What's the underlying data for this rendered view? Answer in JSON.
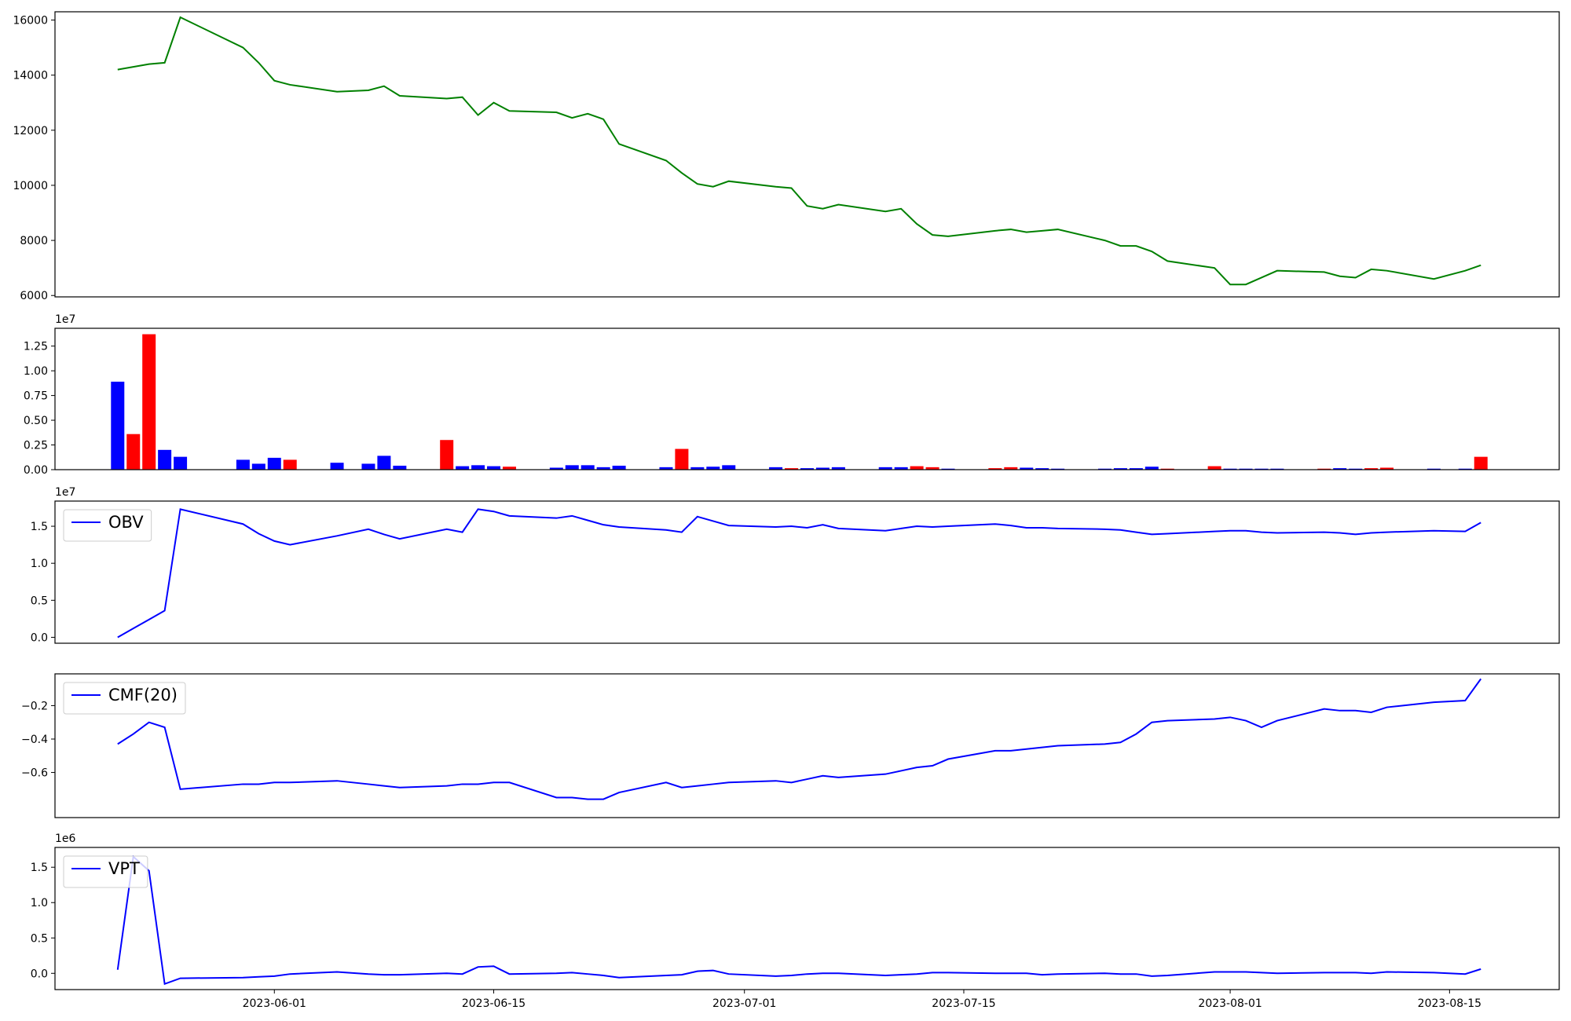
{
  "chart_data": [
    {
      "type": "line",
      "x": [
        "2023-05-22",
        "2023-05-23",
        "2023-05-24",
        "2023-05-25",
        "2023-05-26",
        "2023-05-30",
        "2023-05-31",
        "2023-06-01",
        "2023-06-02",
        "2023-06-05",
        "2023-06-07",
        "2023-06-08",
        "2023-06-09",
        "2023-06-12",
        "2023-06-13",
        "2023-06-14",
        "2023-06-15",
        "2023-06-16",
        "2023-06-19",
        "2023-06-20",
        "2023-06-21",
        "2023-06-22",
        "2023-06-23",
        "2023-06-26",
        "2023-06-27",
        "2023-06-28",
        "2023-06-29",
        "2023-06-30",
        "2023-07-03",
        "2023-07-04",
        "2023-07-05",
        "2023-07-06",
        "2023-07-07",
        "2023-07-10",
        "2023-07-11",
        "2023-07-12",
        "2023-07-13",
        "2023-07-14",
        "2023-07-17",
        "2023-07-18",
        "2023-07-19",
        "2023-07-20",
        "2023-07-21",
        "2023-07-24",
        "2023-07-25",
        "2023-07-26",
        "2023-07-27",
        "2023-07-28",
        "2023-07-31",
        "2023-08-01",
        "2023-08-02",
        "2023-08-03",
        "2023-08-04",
        "2023-08-07",
        "2023-08-08",
        "2023-08-09",
        "2023-08-10",
        "2023-08-11",
        "2023-08-14",
        "2023-08-16",
        "2023-08-17"
      ],
      "series": [
        {
          "color": "green",
          "values": [
            14200,
            14300,
            14400,
            14450,
            16100,
            15000,
            14450,
            13800,
            13650,
            13400,
            13450,
            13600,
            13250,
            13150,
            13200,
            12550,
            13000,
            12700,
            12650,
            12450,
            12600,
            12400,
            11500,
            10900,
            10450,
            10050,
            9950,
            10150,
            9950,
            9900,
            9250,
            9150,
            9300,
            9050,
            9150,
            8600,
            8200,
            8150,
            8350,
            8400,
            8300,
            8350,
            8400,
            8000,
            7800,
            7800,
            7600,
            7250,
            7000,
            6400,
            6400,
            6650,
            6900,
            6850,
            6700,
            6650,
            6950,
            6900,
            6600,
            6900,
            7100
          ]
        }
      ],
      "xlim": [
        "2023-05-18",
        "2023-08-22"
      ],
      "ylim": [
        5950,
        16300
      ],
      "yticks": [
        6000,
        8000,
        10000,
        12000,
        14000,
        16000
      ]
    },
    {
      "type": "bar",
      "x": [
        "2023-05-22",
        "2023-05-23",
        "2023-05-24",
        "2023-05-25",
        "2023-05-26",
        "2023-05-30",
        "2023-05-31",
        "2023-06-01",
        "2023-06-02",
        "2023-06-05",
        "2023-06-07",
        "2023-06-08",
        "2023-06-09",
        "2023-06-12",
        "2023-06-13",
        "2023-06-14",
        "2023-06-15",
        "2023-06-16",
        "2023-06-19",
        "2023-06-20",
        "2023-06-21",
        "2023-06-22",
        "2023-06-23",
        "2023-06-26",
        "2023-06-27",
        "2023-06-28",
        "2023-06-29",
        "2023-06-30",
        "2023-07-03",
        "2023-07-04",
        "2023-07-05",
        "2023-07-06",
        "2023-07-07",
        "2023-07-10",
        "2023-07-11",
        "2023-07-12",
        "2023-07-13",
        "2023-07-14",
        "2023-07-17",
        "2023-07-18",
        "2023-07-19",
        "2023-07-20",
        "2023-07-21",
        "2023-07-24",
        "2023-07-25",
        "2023-07-26",
        "2023-07-27",
        "2023-07-28",
        "2023-07-31",
        "2023-08-01",
        "2023-08-02",
        "2023-08-03",
        "2023-08-04",
        "2023-08-07",
        "2023-08-08",
        "2023-08-09",
        "2023-08-10",
        "2023-08-11",
        "2023-08-14",
        "2023-08-16",
        "2023-08-17"
      ],
      "values": [
        8900000,
        3600000,
        13700000,
        2000000,
        1300000,
        1000000,
        600000,
        1200000,
        1000000,
        700000,
        600000,
        1400000,
        400000,
        3000000,
        350000,
        450000,
        350000,
        300000,
        200000,
        450000,
        450000,
        250000,
        400000,
        250000,
        2100000,
        250000,
        300000,
        450000,
        250000,
        150000,
        150000,
        200000,
        250000,
        250000,
        250000,
        350000,
        250000,
        100000,
        150000,
        250000,
        200000,
        150000,
        100000,
        100000,
        150000,
        150000,
        300000,
        100000,
        350000,
        100000,
        100000,
        100000,
        100000,
        100000,
        150000,
        100000,
        150000,
        200000,
        100000,
        100000,
        1300000
      ],
      "colors": [
        "blue",
        "red",
        "red",
        "blue",
        "blue",
        "blue",
        "blue",
        "blue",
        "red",
        "blue",
        "blue",
        "blue",
        "blue",
        "red",
        "blue",
        "blue",
        "blue",
        "red",
        "blue",
        "blue",
        "blue",
        "blue",
        "blue",
        "blue",
        "red",
        "blue",
        "blue",
        "blue",
        "blue",
        "red",
        "blue",
        "blue",
        "blue",
        "blue",
        "blue",
        "red",
        "red",
        "blue",
        "red",
        "red",
        "blue",
        "blue",
        "blue",
        "blue",
        "blue",
        "blue",
        "blue",
        "red",
        "red",
        "blue",
        "blue",
        "blue",
        "blue",
        "red",
        "blue",
        "blue",
        "red",
        "red",
        "blue",
        "blue",
        "red"
      ],
      "xlim": [
        "2023-05-18",
        "2023-08-22"
      ],
      "ylim": [
        0,
        14300000
      ],
      "y_offset_label": "1e7",
      "yticks": [
        {
          "value": 0,
          "label": "0.00"
        },
        {
          "value": 2500000,
          "label": "0.25"
        },
        {
          "value": 5000000,
          "label": "0.50"
        },
        {
          "value": 7500000,
          "label": "0.75"
        },
        {
          "value": 10000000,
          "label": "1.00"
        },
        {
          "value": 12500000,
          "label": "1.25"
        }
      ]
    },
    {
      "type": "line",
      "x": [
        "2023-05-22",
        "2023-05-23",
        "2023-05-24",
        "2023-05-25",
        "2023-05-26",
        "2023-05-30",
        "2023-05-31",
        "2023-06-01",
        "2023-06-02",
        "2023-06-05",
        "2023-06-07",
        "2023-06-08",
        "2023-06-09",
        "2023-06-12",
        "2023-06-13",
        "2023-06-14",
        "2023-06-15",
        "2023-06-16",
        "2023-06-19",
        "2023-06-20",
        "2023-06-21",
        "2023-06-22",
        "2023-06-23",
        "2023-06-26",
        "2023-06-27",
        "2023-06-28",
        "2023-06-29",
        "2023-06-30",
        "2023-07-03",
        "2023-07-04",
        "2023-07-05",
        "2023-07-06",
        "2023-07-07",
        "2023-07-10",
        "2023-07-11",
        "2023-07-12",
        "2023-07-13",
        "2023-07-14",
        "2023-07-17",
        "2023-07-18",
        "2023-07-19",
        "2023-07-20",
        "2023-07-21",
        "2023-07-24",
        "2023-07-25",
        "2023-07-26",
        "2023-07-27",
        "2023-07-28",
        "2023-07-31",
        "2023-08-01",
        "2023-08-02",
        "2023-08-03",
        "2023-08-04",
        "2023-08-07",
        "2023-08-08",
        "2023-08-09",
        "2023-08-10",
        "2023-08-11",
        "2023-08-14",
        "2023-08-16",
        "2023-08-17"
      ],
      "series": [
        {
          "name": "OBV",
          "color": "blue",
          "values": [
            0,
            1200000,
            2400000,
            3600000,
            17300000,
            15300000,
            14000000,
            13000000,
            12500000,
            13700000,
            14600000,
            13900000,
            13300000,
            14600000,
            14200000,
            17300000,
            17000000,
            16400000,
            16100000,
            16400000,
            15800000,
            15200000,
            14900000,
            14500000,
            14200000,
            16300000,
            15700000,
            15100000,
            14900000,
            15000000,
            14800000,
            15200000,
            14700000,
            14400000,
            14700000,
            15000000,
            14900000,
            15000000,
            15300000,
            15100000,
            14800000,
            14800000,
            14700000,
            14600000,
            14500000,
            14200000,
            13900000,
            14000000,
            14300000,
            14400000,
            14400000,
            14200000,
            14100000,
            14200000,
            14100000,
            13900000,
            14100000,
            14200000,
            14400000,
            14300000,
            15500000
          ]
        }
      ],
      "xlim": [
        "2023-05-18",
        "2023-08-22"
      ],
      "ylim": [
        -800000,
        18400000
      ],
      "y_offset_label": "1e7",
      "yticks": [
        {
          "value": 0,
          "label": "0.0"
        },
        {
          "value": 5000000,
          "label": "0.5"
        },
        {
          "value": 10000000,
          "label": "1.0"
        },
        {
          "value": 15000000,
          "label": "1.5"
        }
      ],
      "legend": "upper left"
    },
    {
      "type": "line",
      "x": [
        "2023-05-22",
        "2023-05-23",
        "2023-05-24",
        "2023-05-25",
        "2023-05-26",
        "2023-05-30",
        "2023-05-31",
        "2023-06-01",
        "2023-06-02",
        "2023-06-05",
        "2023-06-07",
        "2023-06-08",
        "2023-06-09",
        "2023-06-12",
        "2023-06-13",
        "2023-06-14",
        "2023-06-15",
        "2023-06-16",
        "2023-06-19",
        "2023-06-20",
        "2023-06-21",
        "2023-06-22",
        "2023-06-23",
        "2023-06-26",
        "2023-06-27",
        "2023-06-28",
        "2023-06-29",
        "2023-06-30",
        "2023-07-03",
        "2023-07-04",
        "2023-07-05",
        "2023-07-06",
        "2023-07-07",
        "2023-07-10",
        "2023-07-11",
        "2023-07-12",
        "2023-07-13",
        "2023-07-14",
        "2023-07-17",
        "2023-07-18",
        "2023-07-19",
        "2023-07-20",
        "2023-07-21",
        "2023-07-24",
        "2023-07-25",
        "2023-07-26",
        "2023-07-27",
        "2023-07-28",
        "2023-07-31",
        "2023-08-01",
        "2023-08-02",
        "2023-08-03",
        "2023-08-04",
        "2023-08-07",
        "2023-08-08",
        "2023-08-09",
        "2023-08-10",
        "2023-08-11",
        "2023-08-14",
        "2023-08-16",
        "2023-08-17"
      ],
      "series": [
        {
          "name": "CMF(20)",
          "color": "blue",
          "values": [
            -0.43,
            -0.37,
            -0.3,
            -0.33,
            -0.7,
            -0.67,
            -0.67,
            -0.66,
            -0.66,
            -0.65,
            -0.67,
            -0.68,
            -0.69,
            -0.68,
            -0.67,
            -0.67,
            -0.66,
            -0.66,
            -0.75,
            -0.75,
            -0.76,
            -0.76,
            -0.72,
            -0.66,
            -0.69,
            -0.68,
            -0.67,
            -0.66,
            -0.65,
            -0.66,
            -0.64,
            -0.62,
            -0.63,
            -0.61,
            -0.59,
            -0.57,
            -0.56,
            -0.52,
            -0.47,
            -0.47,
            -0.46,
            -0.45,
            -0.44,
            -0.43,
            -0.42,
            -0.37,
            -0.3,
            -0.29,
            -0.28,
            -0.27,
            -0.29,
            -0.33,
            -0.29,
            -0.22,
            -0.23,
            -0.23,
            -0.24,
            -0.21,
            -0.18,
            -0.17,
            -0.04
          ]
        }
      ],
      "xlim": [
        "2023-05-18",
        "2023-08-22"
      ],
      "ylim": [
        -0.87,
        -0.01
      ],
      "yticks": [
        {
          "value": -0.6,
          "label": "−0.6"
        },
        {
          "value": -0.4,
          "label": "−0.4"
        },
        {
          "value": -0.2,
          "label": "−0.2"
        }
      ],
      "legend": "upper left"
    },
    {
      "type": "line",
      "x": [
        "2023-05-22",
        "2023-05-23",
        "2023-05-24",
        "2023-05-25",
        "2023-05-26",
        "2023-05-30",
        "2023-05-31",
        "2023-06-01",
        "2023-06-02",
        "2023-06-05",
        "2023-06-07",
        "2023-06-08",
        "2023-06-09",
        "2023-06-12",
        "2023-06-13",
        "2023-06-14",
        "2023-06-15",
        "2023-06-16",
        "2023-06-19",
        "2023-06-20",
        "2023-06-21",
        "2023-06-22",
        "2023-06-23",
        "2023-06-26",
        "2023-06-27",
        "2023-06-28",
        "2023-06-29",
        "2023-06-30",
        "2023-07-03",
        "2023-07-04",
        "2023-07-05",
        "2023-07-06",
        "2023-07-07",
        "2023-07-10",
        "2023-07-11",
        "2023-07-12",
        "2023-07-13",
        "2023-07-14",
        "2023-07-17",
        "2023-07-18",
        "2023-07-19",
        "2023-07-20",
        "2023-07-21",
        "2023-07-24",
        "2023-07-25",
        "2023-07-26",
        "2023-07-27",
        "2023-07-28",
        "2023-07-31",
        "2023-08-01",
        "2023-08-02",
        "2023-08-03",
        "2023-08-04",
        "2023-08-07",
        "2023-08-08",
        "2023-08-09",
        "2023-08-10",
        "2023-08-11",
        "2023-08-14",
        "2023-08-16",
        "2023-08-17"
      ],
      "series": [
        {
          "name": "VPT",
          "color": "blue",
          "values": [
            50000,
            1650000,
            1450000,
            -150000,
            -70000,
            -60000,
            -50000,
            -40000,
            -10000,
            20000,
            -10000,
            -20000,
            -20000,
            0,
            -10000,
            90000,
            100000,
            -10000,
            0,
            10000,
            -10000,
            -30000,
            -60000,
            -30000,
            -20000,
            30000,
            40000,
            -10000,
            -40000,
            -30000,
            -10000,
            0,
            0,
            -30000,
            -20000,
            -10000,
            10000,
            10000,
            0,
            0,
            0,
            -20000,
            -10000,
            0,
            -10000,
            -10000,
            -40000,
            -30000,
            20000,
            20000,
            20000,
            10000,
            0,
            10000,
            10000,
            10000,
            0,
            20000,
            10000,
            -10000,
            60000
          ]
        }
      ],
      "xlim": [
        "2023-05-18",
        "2023-08-22"
      ],
      "ylim": [
        -230000,
        1780000
      ],
      "y_offset_label": "1e6",
      "yticks": [
        {
          "value": 0,
          "label": "0.0"
        },
        {
          "value": 500000,
          "label": "0.5"
        },
        {
          "value": 1000000,
          "label": "1.0"
        },
        {
          "value": 1500000,
          "label": "1.5"
        }
      ],
      "xticks": [
        "2023-06-01",
        "2023-06-15",
        "2023-07-01",
        "2023-07-15",
        "2023-08-01",
        "2023-08-15"
      ],
      "legend": "upper left"
    }
  ]
}
